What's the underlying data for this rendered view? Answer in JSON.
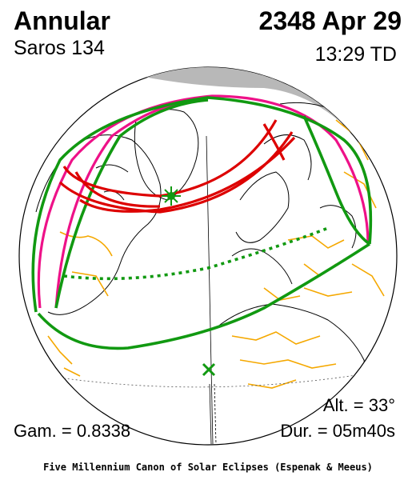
{
  "header": {
    "eclipse_type": "Annular",
    "date": "2348 Apr 29",
    "saros": "Saros 134",
    "time": "13:29 TD"
  },
  "stats": {
    "altitude": "Alt. = 33°",
    "gamma": "Gam. = 0.8338",
    "duration": "Dur. = 05m40s"
  },
  "footer": {
    "credit": "Five Millennium Canon of Solar Eclipses (Espenak & Meeus)"
  },
  "colors": {
    "night_shade": "#b8b8b8",
    "coastline": "#000000",
    "borders": "#f5a800",
    "penumbra_limits": "#119911",
    "annular_path": "#dd0000",
    "rise_set_curves": "#ee1188",
    "greatest_eclipse_marker": "#119911"
  },
  "markers": {
    "greatest_eclipse": "star-icon",
    "subsolar_point": "cross-icon"
  }
}
